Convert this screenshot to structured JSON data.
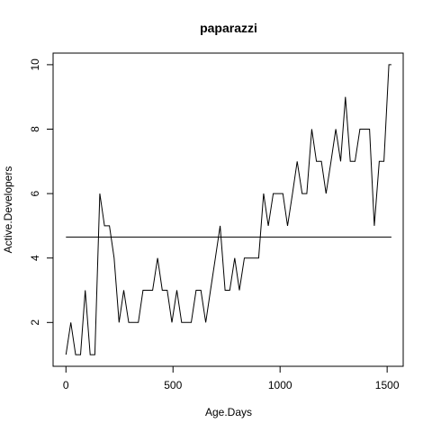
{
  "chart_data": {
    "type": "line",
    "title": "paparazzi",
    "xlabel": "Age.Days",
    "ylabel": "Active.Developers",
    "xlim": [
      -60,
      1575
    ],
    "ylim": [
      0.64,
      10.36
    ],
    "xticks": [
      0,
      500,
      1000,
      1500
    ],
    "yticks": [
      2,
      4,
      6,
      8,
      10
    ],
    "grid": false,
    "series": [
      {
        "x": [
          0,
          23,
          45,
          68,
          90,
          113,
          135,
          158,
          180,
          203,
          225,
          248,
          270,
          293,
          315,
          338,
          360,
          383,
          405,
          428,
          450,
          473,
          495,
          518,
          540,
          563,
          585,
          608,
          630,
          653,
          675,
          698,
          720,
          743,
          765,
          788,
          810,
          833,
          855,
          878,
          900,
          923,
          945,
          968,
          990,
          1013,
          1035,
          1058,
          1080,
          1103,
          1125,
          1148,
          1170,
          1193,
          1215,
          1238,
          1260,
          1283,
          1305,
          1328,
          1350,
          1373,
          1395,
          1418,
          1440,
          1463,
          1485,
          1508,
          1520
        ],
        "y": [
          1,
          2,
          1,
          1,
          3,
          1,
          1,
          6,
          5,
          5,
          4,
          2,
          3,
          2,
          2,
          2,
          3,
          3,
          3,
          4,
          3,
          3,
          2,
          3,
          2,
          2,
          2,
          3,
          3,
          2,
          3,
          4,
          5,
          3,
          3,
          4,
          3,
          4,
          4,
          4,
          4,
          6,
          5,
          6,
          6,
          6,
          5,
          6,
          7,
          6,
          6,
          8,
          7,
          7,
          6,
          7,
          8,
          7,
          9,
          7,
          7,
          8,
          8,
          8,
          5,
          7,
          7,
          10,
          10
        ]
      }
    ],
    "hline": {
      "y": 4.65,
      "x": [
        0,
        1520
      ]
    }
  }
}
